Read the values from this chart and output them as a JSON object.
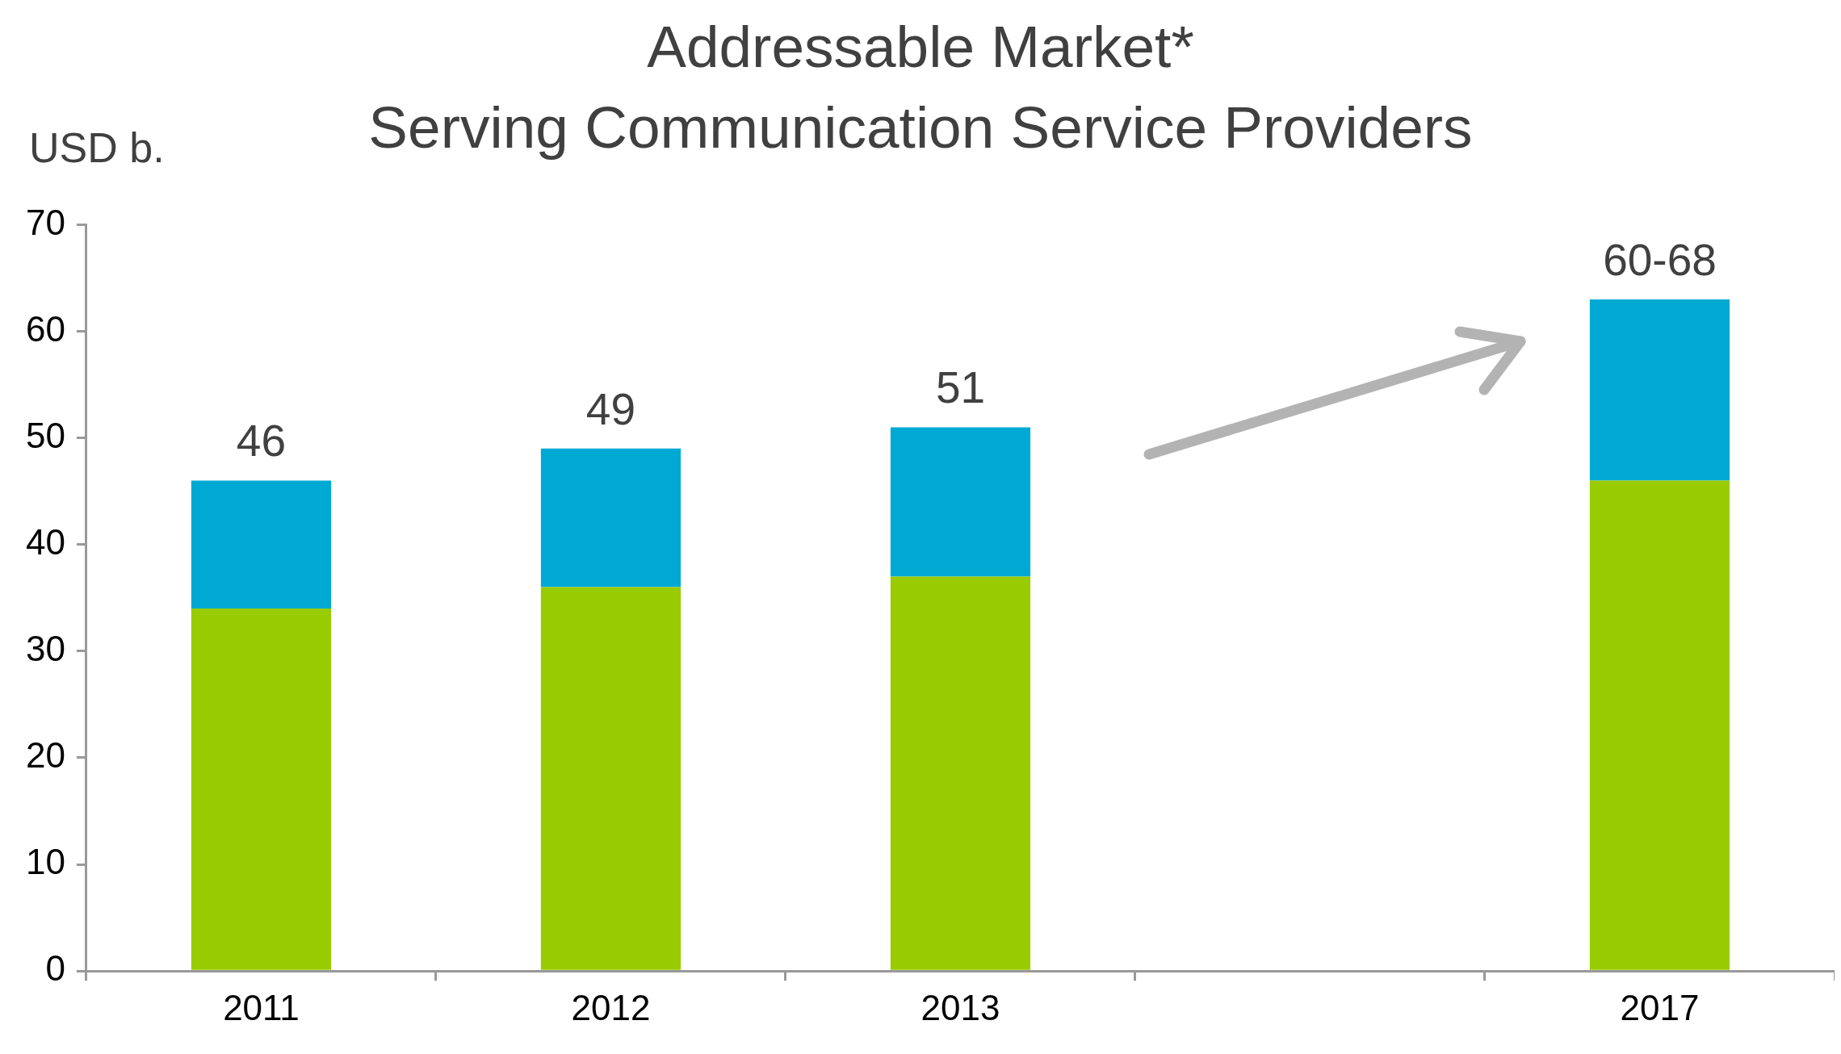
{
  "chart_data": {
    "type": "bar",
    "title": "Addressable Market*",
    "subtitle": "Serving Communication Service Providers",
    "ylabel": "USD b.",
    "categories": [
      "2011",
      "2012",
      "2013",
      null,
      "2017"
    ],
    "series": [
      {
        "color": "#99cc00",
        "values": [
          34,
          36,
          37,
          null,
          46
        ]
      },
      {
        "color": "#00a9d4",
        "values": [
          12,
          13,
          14,
          null,
          17
        ]
      }
    ],
    "stacked": true,
    "totals": [
      "46",
      "49",
      "51",
      null,
      "60-68"
    ],
    "ylim": [
      0,
      70
    ],
    "yticks": [
      0,
      10,
      20,
      30,
      40,
      50,
      60,
      70
    ],
    "grid": false,
    "legend": false
  }
}
